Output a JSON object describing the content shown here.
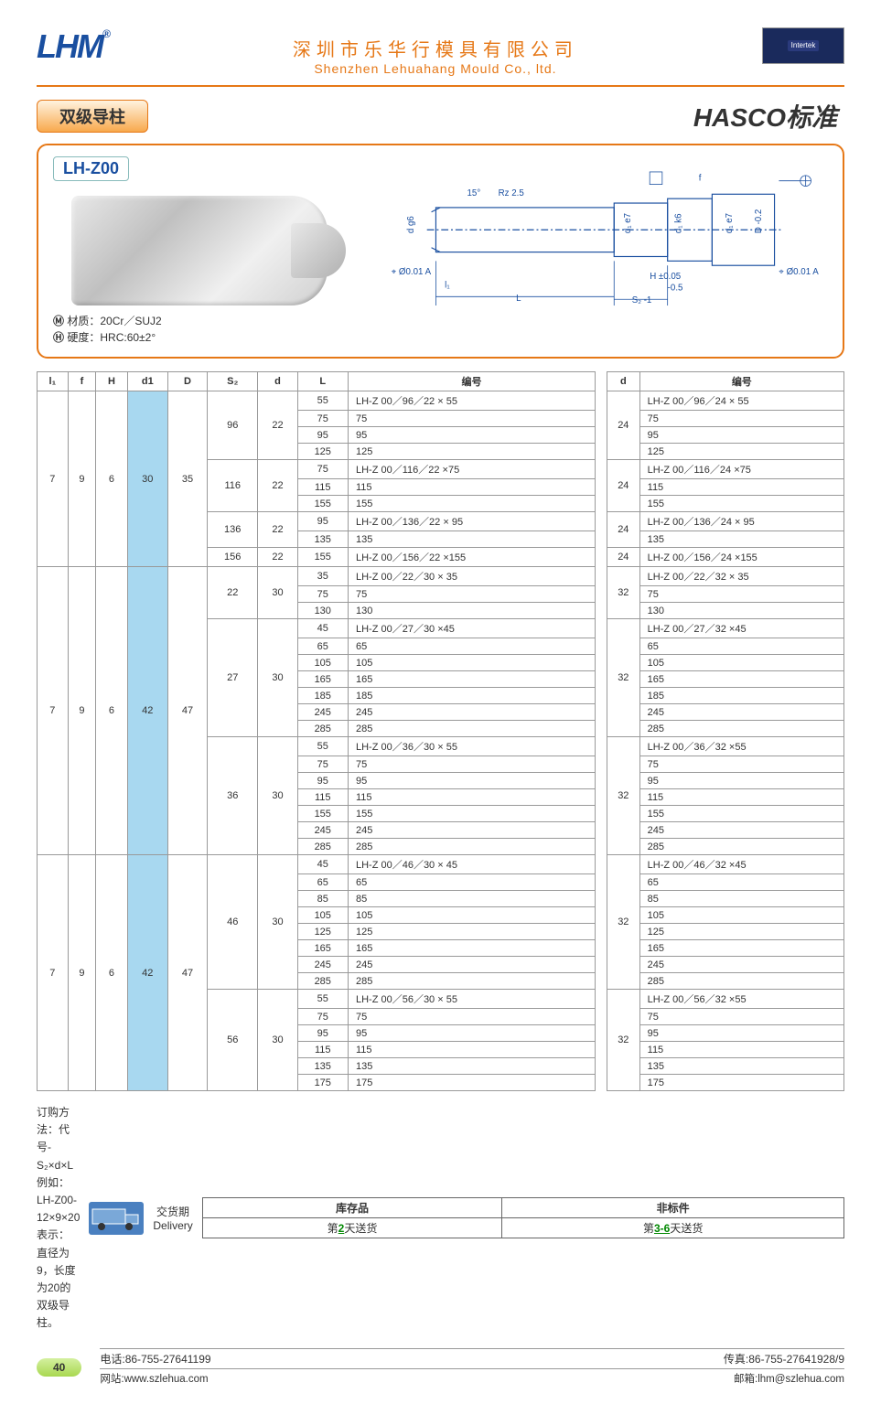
{
  "header": {
    "logo": "LHM",
    "logo_mark": "®",
    "company_cn": "深圳市乐华行模具有限公司",
    "company_en": "Shenzhen Lehuahang Mould Co., ltd.",
    "cert_text": "Intertek"
  },
  "titles": {
    "left": "双级导柱",
    "right": "HASCO标准"
  },
  "part": {
    "code": "LH-Z00",
    "material_label": "材质：",
    "material_value": "20Cr／SUJ2",
    "hardness_label": "硬度：",
    "hardness_value": "HRC:60±2°"
  },
  "drawing_labels": {
    "angle": "15°",
    "rz": "Rz 2.5",
    "d_g6": "d g6",
    "d1_e7": "d₁ e7",
    "d1_k6": "d₁ k6",
    "D_minus": "D -0.2",
    "tol1": "⌖ Ø0.01 A",
    "tol2": "⌖ Ø0.01 A",
    "A": "A",
    "f": "f",
    "H": "H ±0.05",
    "minus05": "-0.5",
    "S2": "S₂ -1",
    "L": "L",
    "l1": "l₁"
  },
  "table": {
    "headers_left": [
      "l₁",
      "f",
      "H",
      "d1",
      "D",
      "S₂",
      "d",
      "L",
      "编号"
    ],
    "headers_right": [
      "d",
      "编号"
    ],
    "groups": [
      {
        "l1": "7",
        "f": "9",
        "H": "6",
        "d1": "30",
        "d1_hl": true,
        "D": "35",
        "blocks": [
          {
            "S2": "96",
            "d": "22",
            "d_r": "24",
            "rows": [
              {
                "L": "55",
                "pn": "LH-Z 00／96／22 × 55",
                "pn_r": "LH-Z 00／96／24 × 55"
              },
              {
                "L": "75",
                "pn": "75",
                "pn_r": "75"
              },
              {
                "L": "95",
                "pn": "95",
                "pn_r": "95"
              },
              {
                "L": "125",
                "pn": "125",
                "pn_r": "125"
              }
            ]
          },
          {
            "S2": "116",
            "d": "22",
            "d_r": "24",
            "rows": [
              {
                "L": "75",
                "pn": "LH-Z 00／116／22 ×75",
                "pn_r": "LH-Z 00／116／24 ×75"
              },
              {
                "L": "115",
                "pn": "115",
                "pn_r": "115"
              },
              {
                "L": "155",
                "pn": "155",
                "pn_r": "155"
              }
            ]
          },
          {
            "S2": "136",
            "d": "22",
            "d_r": "24",
            "rows": [
              {
                "L": "95",
                "pn": "LH-Z 00／136／22 × 95",
                "pn_r": "LH-Z 00／136／24 × 95"
              },
              {
                "L": "135",
                "pn": "135",
                "pn_r": "135"
              }
            ]
          },
          {
            "S2": "156",
            "d": "22",
            "d_r": "24",
            "rows": [
              {
                "L": "155",
                "pn": "LH-Z 00／156／22 ×155",
                "pn_r": "LH-Z 00／156／24 ×155"
              }
            ]
          }
        ]
      },
      {
        "l1": "7",
        "f": "9",
        "H": "6",
        "d1": "42",
        "d1_hl": true,
        "D": "47",
        "blocks": [
          {
            "S2": "22",
            "d": "30",
            "d_r": "32",
            "rows": [
              {
                "L": "35",
                "pn": "LH-Z 00／22／30 × 35",
                "pn_r": "LH-Z 00／22／32 × 35"
              },
              {
                "L": "75",
                "pn": "75",
                "pn_r": "75"
              },
              {
                "L": "130",
                "pn": "130",
                "pn_r": "130"
              }
            ]
          },
          {
            "S2": "27",
            "d": "30",
            "d_r": "32",
            "rows": [
              {
                "L": "45",
                "pn": "LH-Z 00／27／30 ×45",
                "pn_r": "LH-Z 00／27／32 ×45"
              },
              {
                "L": "65",
                "pn": "65",
                "pn_r": "65"
              },
              {
                "L": "105",
                "pn": "105",
                "pn_r": "105"
              },
              {
                "L": "165",
                "pn": "165",
                "pn_r": "165"
              },
              {
                "L": "185",
                "pn": "185",
                "pn_r": "185"
              },
              {
                "L": "245",
                "pn": "245",
                "pn_r": "245"
              },
              {
                "L": "285",
                "pn": "285",
                "pn_r": "285"
              }
            ]
          },
          {
            "S2": "36",
            "d": "30",
            "d_r": "32",
            "rows": [
              {
                "L": "55",
                "pn": "LH-Z 00／36／30 × 55",
                "pn_r": "LH-Z 00／36／32 ×55"
              },
              {
                "L": "75",
                "pn": "75",
                "pn_r": "75"
              },
              {
                "L": "95",
                "pn": "95",
                "pn_r": "95"
              },
              {
                "L": "115",
                "pn": "115",
                "pn_r": "115"
              },
              {
                "L": "155",
                "pn": "155",
                "pn_r": "155"
              },
              {
                "L": "245",
                "pn": "245",
                "pn_r": "245"
              },
              {
                "L": "285",
                "pn": "285",
                "pn_r": "285"
              }
            ]
          }
        ]
      },
      {
        "l1": "7",
        "f": "9",
        "H": "6",
        "d1": "42",
        "d1_hl": true,
        "D": "47",
        "blocks": [
          {
            "S2": "46",
            "d": "30",
            "d_r": "32",
            "rows": [
              {
                "L": "45",
                "pn": "LH-Z 00／46／30 × 45",
                "pn_r": "LH-Z 00／46／32 ×45"
              },
              {
                "L": "65",
                "pn": "65",
                "pn_r": "65"
              },
              {
                "L": "85",
                "pn": "85",
                "pn_r": "85"
              },
              {
                "L": "105",
                "pn": "105",
                "pn_r": "105"
              },
              {
                "L": "125",
                "pn": "125",
                "pn_r": "125"
              },
              {
                "L": "165",
                "pn": "165",
                "pn_r": "165"
              },
              {
                "L": "245",
                "pn": "245",
                "pn_r": "245"
              },
              {
                "L": "285",
                "pn": "285",
                "pn_r": "285"
              }
            ]
          },
          {
            "S2": "56",
            "d": "30",
            "d_r": "32",
            "rows": [
              {
                "L": "55",
                "pn": "LH-Z 00／56／30 × 55",
                "pn_r": "LH-Z 00／56／32 ×55"
              },
              {
                "L": "75",
                "pn": "75",
                "pn_r": "75"
              },
              {
                "L": "95",
                "pn": "95",
                "pn_r": "95"
              },
              {
                "L": "115",
                "pn": "115",
                "pn_r": "115"
              },
              {
                "L": "135",
                "pn": "135",
                "pn_r": "135"
              },
              {
                "L": "175",
                "pn": "175",
                "pn_r": "175"
              }
            ]
          }
        ]
      }
    ]
  },
  "order": {
    "line1": "订购方法：代号-S₂×d×L",
    "line2": "例如：LH-Z00-12×9×20 表示：直径为9，长度为20的双级导柱。"
  },
  "delivery": {
    "truck_label": "乐华行\n模具配件",
    "label_cn": "交货期",
    "label_en": "Delivery",
    "stock_h": "库存品",
    "nonstd_h": "非标件",
    "stock_v_pre": "第",
    "stock_v_num": "2",
    "stock_v_suf": "天送货",
    "nonstd_v_pre": "第",
    "nonstd_v_num": "3-6",
    "nonstd_v_suf": "天送货"
  },
  "footer": {
    "page": "40",
    "tel_l": "电话:",
    "tel_v": "86-755-27641199",
    "fax_l": "传真:",
    "fax_v": "86-755-27641928/9",
    "web_l": "网站:",
    "web_v": "www.szlehua.com",
    "mail_l": "邮箱:",
    "mail_v": "lhm@szlehua.com"
  },
  "colors": {
    "brand_orange": "#e67817",
    "brand_blue": "#1a4fa0",
    "highlight": "#a8d8f0",
    "page_green": "#a8d850"
  }
}
